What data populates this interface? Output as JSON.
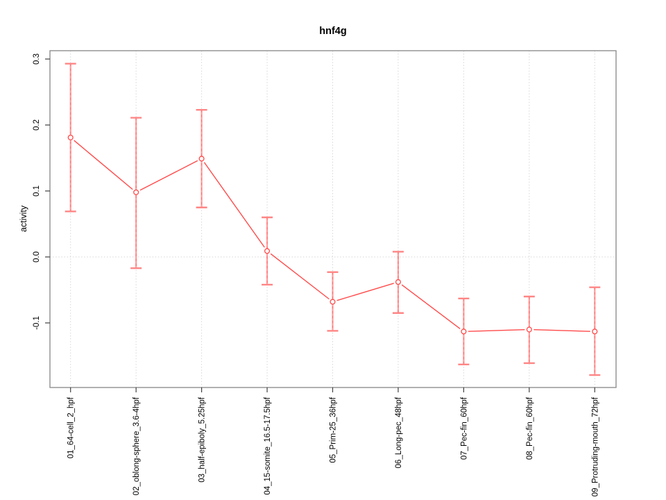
{
  "chart_data": {
    "type": "line",
    "title": "hnf4g",
    "xlabel": "",
    "ylabel": "activity",
    "categories": [
      "01_64-cell_2_hpf",
      "02_oblong-sphere_3.6-4hpf",
      "03_half-epiboly_5.25hpf",
      "04_15-somite_16.5-17.5hpf",
      "05_Prim-25_36hpf",
      "06_Long-pec_48hpf",
      "07_Pec-fin_60hpf",
      "08_Pec-fin_60hpf",
      "09_Protruding-mouth_72hpf"
    ],
    "series": [
      {
        "name": "activity",
        "values": [
          0.181,
          0.098,
          0.149,
          0.009,
          -0.068,
          -0.038,
          -0.113,
          -0.11,
          -0.113
        ],
        "lower": [
          0.069,
          -0.017,
          0.075,
          -0.042,
          -0.112,
          -0.085,
          -0.163,
          -0.161,
          -0.179
        ],
        "upper": [
          0.293,
          0.211,
          0.223,
          0.06,
          -0.023,
          0.008,
          -0.063,
          -0.06,
          -0.046
        ]
      }
    ],
    "yticks": [
      0.3,
      0.2,
      0.1,
      0.0,
      -0.1
    ],
    "ylim": [
      -0.198,
      0.313
    ],
    "grid": "dotted vertical gridline at each category; dotted horizontal gridline at y=0",
    "legend": "none",
    "marker": "open-circle",
    "colors": {
      "line": "#ff4a4a",
      "error_bar": "#ff9d9d",
      "error_cap": "#ff8585",
      "grid": "#d6d6d6",
      "box": "#8f8f8f",
      "tick": "#404040",
      "text": "#000000",
      "background": "#ffffff"
    }
  }
}
